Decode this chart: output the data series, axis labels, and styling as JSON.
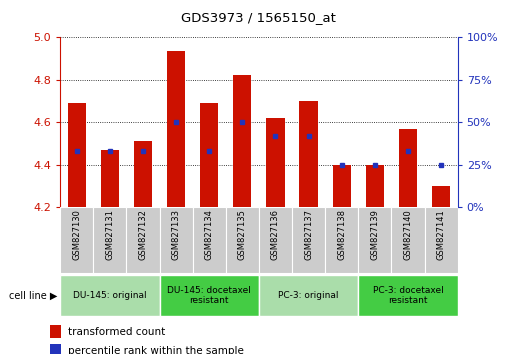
{
  "title": "GDS3973 / 1565150_at",
  "samples": [
    "GSM827130",
    "GSM827131",
    "GSM827132",
    "GSM827133",
    "GSM827134",
    "GSM827135",
    "GSM827136",
    "GSM827137",
    "GSM827138",
    "GSM827139",
    "GSM827140",
    "GSM827141"
  ],
  "red_values": [
    4.69,
    4.47,
    4.51,
    4.935,
    4.69,
    4.82,
    4.62,
    4.7,
    4.4,
    4.4,
    4.57,
    4.3
  ],
  "blue_pct": [
    33,
    33,
    33,
    50,
    33,
    50,
    42,
    42,
    25,
    25,
    33,
    25
  ],
  "ymin": 4.2,
  "ymax": 5.0,
  "y2min": 0,
  "y2max": 100,
  "yticks": [
    4.2,
    4.4,
    4.6,
    4.8,
    5.0
  ],
  "y2ticks": [
    0,
    25,
    50,
    75,
    100
  ],
  "bar_color": "#cc1100",
  "blue_color": "#2233bb",
  "bar_width": 0.55,
  "groups": [
    {
      "label": "DU-145: original",
      "start": 0,
      "end": 3,
      "color": "#aaddaa"
    },
    {
      "label": "DU-145: docetaxel\nresistant",
      "start": 3,
      "end": 6,
      "color": "#44cc44"
    },
    {
      "label": "PC-3: original",
      "start": 6,
      "end": 9,
      "color": "#aaddaa"
    },
    {
      "label": "PC-3: docetaxel\nresistant",
      "start": 9,
      "end": 12,
      "color": "#44cc44"
    }
  ],
  "cell_line_label": "cell line",
  "legend_red": "transformed count",
  "legend_blue": "percentile rank within the sample",
  "red_axis_color": "#cc1100",
  "blue_axis_color": "#2233bb"
}
